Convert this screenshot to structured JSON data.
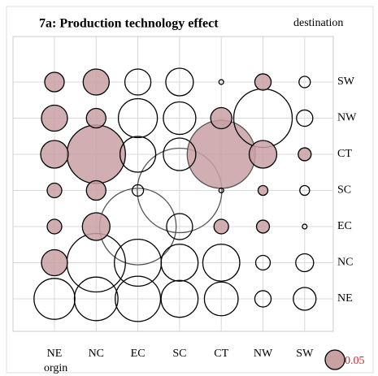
{
  "chart_data": {
    "type": "bubble",
    "title": "7a: Production technology effect",
    "y_label": "destination",
    "x_label": "orgin",
    "x_categories": [
      "NE",
      "NC",
      "EC",
      "SC",
      "CT",
      "NW",
      "SW"
    ],
    "y_categories": [
      "SW",
      "NW",
      "CT",
      "SC",
      "EC",
      "NC",
      "NE"
    ],
    "values": [
      [
        0.05,
        0.089,
        -0.089,
        -0.1,
        -0.003,
        0.035,
        -0.017
      ],
      [
        0.089,
        0.05,
        -0.2,
        -0.139,
        0.059,
        -0.45,
        -0.035
      ],
      [
        0.1,
        0.45,
        -0.168,
        -0.139,
        0.61,
        0.1,
        0.022
      ],
      [
        0.028,
        0.05,
        -0.017,
        -0.94,
        -0.003,
        0.0125,
        -0.0125
      ],
      [
        0.028,
        0.1,
        -0.77,
        -0.089,
        0.028,
        0.022,
        -0.003
      ],
      [
        0.089,
        -0.45,
        -0.29,
        -0.18,
        -0.18,
        -0.028,
        -0.042
      ],
      [
        -0.22,
        -0.25,
        -0.27,
        -0.18,
        -0.15,
        -0.035,
        -0.068
      ]
    ],
    "positive_color": "#c9a0a3",
    "negative_color": "#ffffff",
    "size_legend": 0.05,
    "size_legend_color": "#e0202a",
    "grid": true
  }
}
